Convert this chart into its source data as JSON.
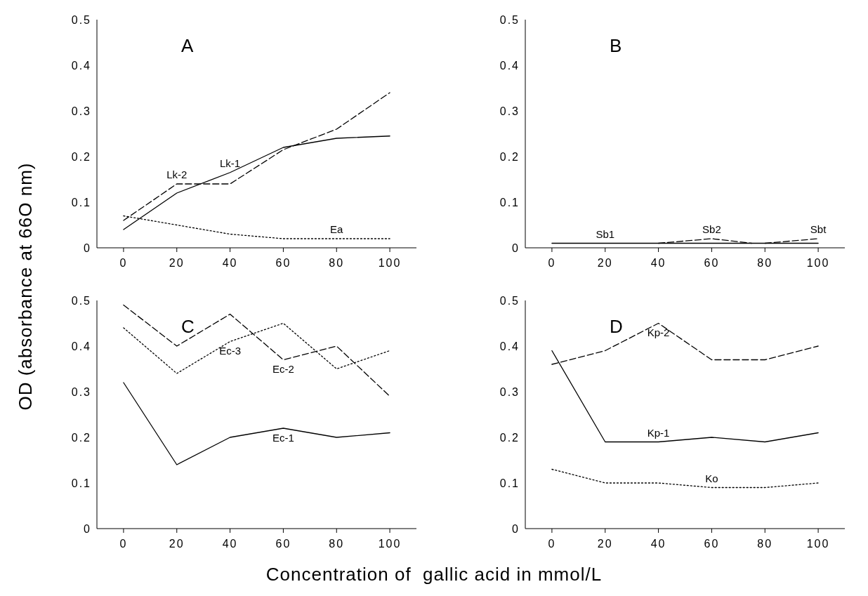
{
  "chart_data": [
    {
      "type": "line",
      "title": "A",
      "ylabel": "OD (absorbance at 66O nm)",
      "x": [
        0,
        20,
        40,
        60,
        80,
        100
      ],
      "xlim": [
        -10,
        110
      ],
      "xticks": [
        0,
        20,
        40,
        60,
        80,
        100
      ],
      "ylim": [
        0,
        0.5
      ],
      "yticks": [
        0,
        0.1,
        0.2,
        0.3,
        0.4,
        0.5
      ],
      "grid": false,
      "legend": false,
      "marker": "none",
      "series": [
        {
          "name": "Lk-1",
          "color": "#000000",
          "line_style": "solid",
          "values": [
            0.04,
            0.12,
            0.165,
            0.22,
            0.24,
            0.245
          ]
        },
        {
          "name": "Lk-2",
          "color": "#000000",
          "line_style": "dashed",
          "values": [
            0.06,
            0.14,
            0.14,
            0.215,
            0.26,
            0.34
          ]
        },
        {
          "name": "Ea",
          "color": "#000000",
          "line_style": "dotted",
          "values": [
            0.07,
            0.05,
            0.03,
            0.02,
            0.02,
            0.02
          ]
        }
      ]
    },
    {
      "type": "line",
      "title": "B",
      "x": [
        0,
        20,
        40,
        60,
        80,
        100
      ],
      "xlim": [
        -10,
        110
      ],
      "xticks": [
        0,
        20,
        40,
        60,
        80,
        100
      ],
      "ylim": [
        0,
        0.5
      ],
      "yticks": [
        0,
        0.1,
        0.2,
        0.3,
        0.4,
        0.5
      ],
      "grid": false,
      "legend": false,
      "marker": "none",
      "series": [
        {
          "name": "Sb1",
          "color": "#000000",
          "line_style": "solid",
          "values": [
            0.01,
            0.01,
            0.01,
            0.01,
            0.01,
            0.01
          ]
        },
        {
          "name": "Sb2",
          "color": "#000000",
          "line_style": "dashed",
          "x": [
            40,
            60,
            75
          ],
          "values": [
            0.01,
            0.02,
            0.01
          ]
        },
        {
          "name": "Sbt",
          "color": "#000000",
          "line_style": "dashed",
          "x": [
            80,
            100
          ],
          "values": [
            0.01,
            0.02
          ]
        }
      ]
    },
    {
      "type": "line",
      "title": "C",
      "xlabel": "Concentration of  gallic acid in mmol/L",
      "x": [
        0,
        20,
        40,
        60,
        80,
        100
      ],
      "xlim": [
        -10,
        110
      ],
      "xticks": [
        0,
        20,
        40,
        60,
        80,
        100
      ],
      "ylim": [
        0,
        0.5
      ],
      "yticks": [
        0,
        0.1,
        0.2,
        0.3,
        0.4,
        0.5
      ],
      "grid": false,
      "legend": false,
      "marker": "none",
      "series": [
        {
          "name": "Ec-1",
          "color": "#000000",
          "line_style": "solid",
          "values": [
            0.32,
            0.14,
            0.2,
            0.22,
            0.2,
            0.21
          ]
        },
        {
          "name": "Ec-2",
          "color": "#000000",
          "line_style": "dashed",
          "values": [
            0.49,
            0.4,
            0.47,
            0.37,
            0.4,
            0.29
          ]
        },
        {
          "name": "Ec-3",
          "color": "#000000",
          "line_style": "dotted",
          "values": [
            0.44,
            0.34,
            0.41,
            0.45,
            0.35,
            0.39
          ]
        }
      ]
    },
    {
      "type": "line",
      "title": "D",
      "x": [
        0,
        20,
        40,
        60,
        80,
        100
      ],
      "xlim": [
        -10,
        110
      ],
      "xticks": [
        0,
        20,
        40,
        60,
        80,
        100
      ],
      "ylim": [
        0,
        0.5
      ],
      "yticks": [
        0,
        0.1,
        0.2,
        0.3,
        0.4,
        0.5
      ],
      "grid": false,
      "legend": false,
      "marker": "none",
      "series": [
        {
          "name": "Kp-2",
          "color": "#000000",
          "line_style": "dashed",
          "values": [
            0.36,
            0.39,
            0.45,
            0.37,
            0.37,
            0.4
          ]
        },
        {
          "name": "Kp-1",
          "color": "#000000",
          "line_style": "solid",
          "values": [
            0.39,
            0.19,
            0.19,
            0.2,
            0.19,
            0.21
          ]
        },
        {
          "name": "Ko",
          "color": "#000000",
          "line_style": "dotted",
          "values": [
            0.13,
            0.1,
            0.1,
            0.09,
            0.09,
            0.1
          ]
        }
      ]
    }
  ]
}
